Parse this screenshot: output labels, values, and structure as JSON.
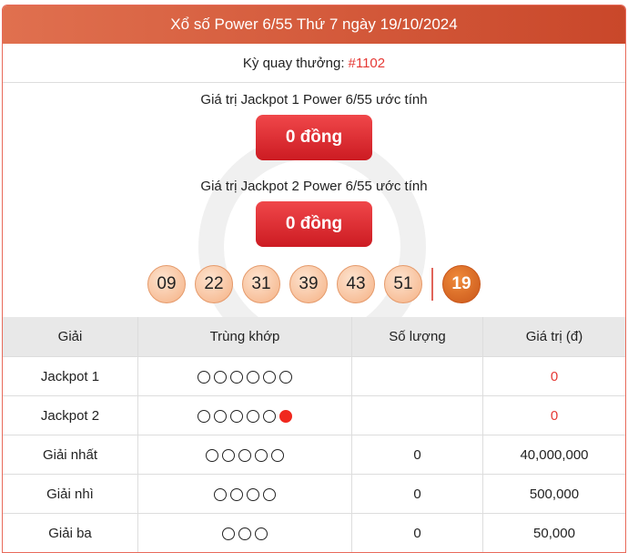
{
  "header": {
    "title": "Xổ số Power 6/55 Thứ 7 ngày 19/10/2024"
  },
  "draw": {
    "label": "Kỳ quay thưởng:",
    "number": "#1102"
  },
  "jackpot1": {
    "label": "Giá trị Jackpot 1 Power 6/55 ước tính",
    "value": "0 đồng"
  },
  "jackpot2": {
    "label": "Giá trị Jackpot 2 Power 6/55 ước tính",
    "value": "0 đồng"
  },
  "numbers": [
    "09",
    "22",
    "31",
    "39",
    "43",
    "51"
  ],
  "power_number": "19",
  "colors": {
    "header": "#d0553a",
    "accent": "#e53935",
    "power_ball": "#d0601f"
  },
  "table": {
    "headers": [
      "Giải",
      "Trùng khớp",
      "Số lượng",
      "Giá trị (đ)"
    ],
    "rows": [
      {
        "prize": "Jackpot 1",
        "match": 6,
        "special": false,
        "count": "",
        "value": "0",
        "red": true
      },
      {
        "prize": "Jackpot 2",
        "match": 5,
        "special": true,
        "count": "",
        "value": "0",
        "red": true
      },
      {
        "prize": "Giải nhất",
        "match": 5,
        "special": false,
        "count": "0",
        "value": "40,000,000",
        "red": false
      },
      {
        "prize": "Giải nhì",
        "match": 4,
        "special": false,
        "count": "0",
        "value": "500,000",
        "red": false
      },
      {
        "prize": "Giải ba",
        "match": 3,
        "special": false,
        "count": "0",
        "value": "50,000",
        "red": false
      }
    ]
  }
}
